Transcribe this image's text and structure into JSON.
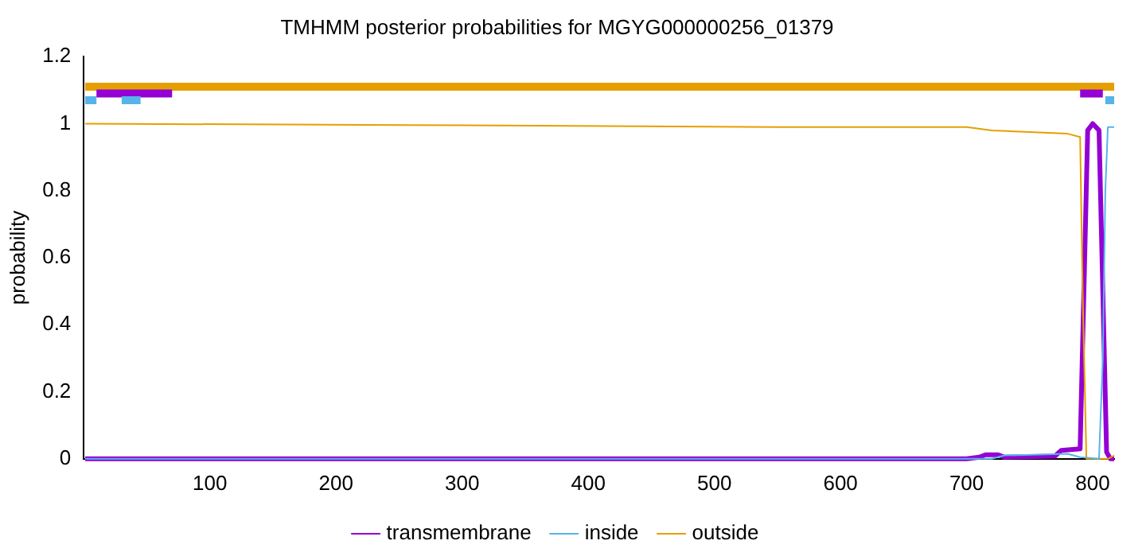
{
  "chart_data": {
    "type": "line",
    "title": "TMHMM posterior probabilities for MGYG000000256_01379",
    "ylabel": "probability",
    "xlim": [
      0,
      817
    ],
    "xticks": [
      100,
      200,
      300,
      400,
      500,
      600,
      700,
      800
    ],
    "ylim": [
      0,
      1.2
    ],
    "yticks": [
      0,
      0.2,
      0.4,
      0.6,
      0.8,
      1,
      1.2
    ],
    "grid": false,
    "legend": "bottom",
    "marker": "none",
    "line_style": "solid",
    "series": [
      {
        "name": "transmembrane",
        "color": "#9400d3",
        "x": [
          1,
          700,
          710,
          715,
          725,
          730,
          770,
          775,
          790,
          793,
          796,
          800,
          805,
          808,
          811,
          814,
          817
        ],
        "values": [
          0,
          0,
          0.005,
          0.012,
          0.012,
          0.005,
          0.008,
          0.025,
          0.03,
          0.5,
          0.98,
          1,
          0.98,
          0.5,
          0.02,
          0,
          0
        ]
      },
      {
        "name": "inside",
        "color": "#56b4e9",
        "x": [
          1,
          720,
          730,
          780,
          790,
          805,
          808,
          810,
          812,
          817
        ],
        "values": [
          0,
          0,
          0.01,
          0.015,
          0.005,
          0,
          0.3,
          0.8,
          0.99,
          0.99
        ]
      },
      {
        "name": "outside",
        "color": "#e69f00",
        "x": [
          1,
          300,
          550,
          700,
          720,
          780,
          790,
          792,
          795,
          812,
          817
        ],
        "values": [
          1,
          0.995,
          0.99,
          0.99,
          0.98,
          0.97,
          0.96,
          0.5,
          0,
          0,
          0.01
        ]
      },
      {
        "type": "step",
        "color": "#e69f00",
        "x": [
          1,
          817
        ],
        "values": [
          1.11,
          1.11
        ]
      },
      {
        "type": "step",
        "color": "#9400d3",
        "x": [
          10,
          70
        ],
        "values": [
          1.09,
          1.09
        ]
      },
      {
        "type": "step",
        "color": "#9400d3",
        "x": [
          790,
          808
        ],
        "values": [
          1.09,
          1.09
        ]
      },
      {
        "type": "step",
        "color": "#56b4e9",
        "x": [
          1,
          10
        ],
        "values": [
          1.07,
          1.07
        ]
      },
      {
        "type": "step",
        "color": "#56b4e9",
        "x": [
          30,
          45
        ],
        "values": [
          1.07,
          1.07
        ]
      },
      {
        "type": "step",
        "color": "#56b4e9",
        "x": [
          810,
          817
        ],
        "values": [
          1.07,
          1.07
        ]
      }
    ]
  }
}
